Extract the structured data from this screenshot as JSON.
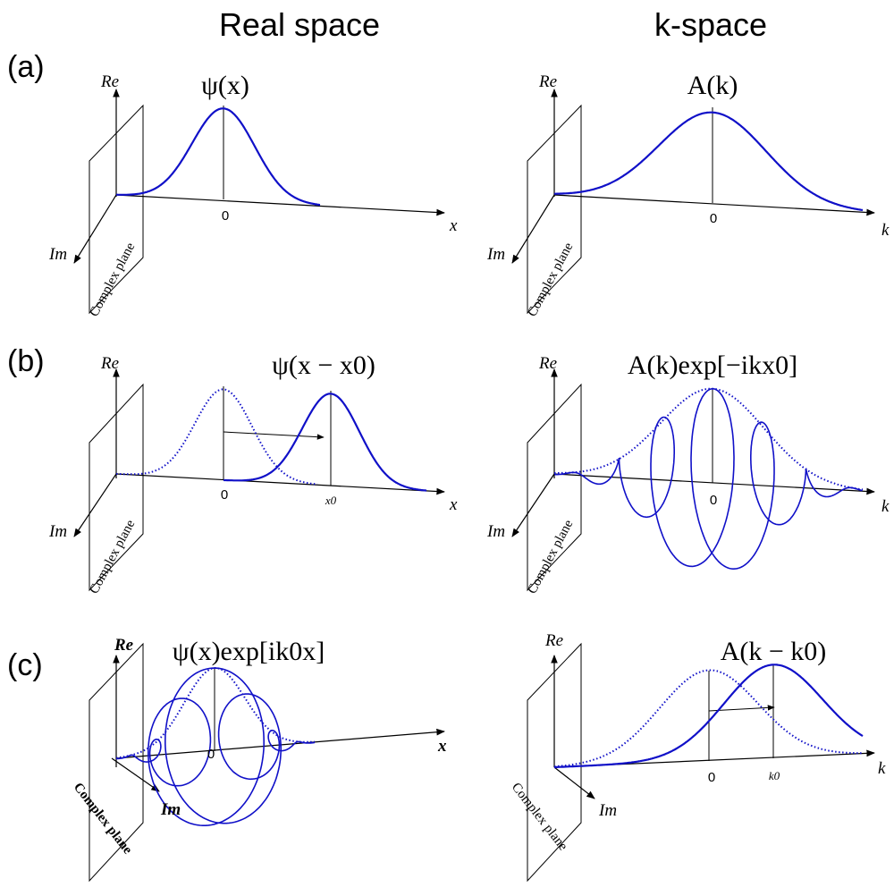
{
  "headers": {
    "real": "Real space",
    "k": "k-space"
  },
  "panels": {
    "a": {
      "label": "(a)",
      "real_title": "ψ(x)",
      "k_title": "A(k)"
    },
    "b": {
      "label": "(b)",
      "real_title": "ψ(x − x0)",
      "k_title": "A(k)exp[−ikx0]"
    },
    "c": {
      "label": "(c)",
      "real_title": "ψ(x)exp[ik0x]",
      "k_title": "A(k − k0)"
    }
  },
  "axes": {
    "re": "Re",
    "im": "Im",
    "x": "x",
    "k": "k",
    "zero": "0",
    "x0": "x0",
    "k0": "k0",
    "complex_plane": "Complex plane"
  },
  "colors": {
    "curve": "#1010c8",
    "axes": "#000000"
  }
}
